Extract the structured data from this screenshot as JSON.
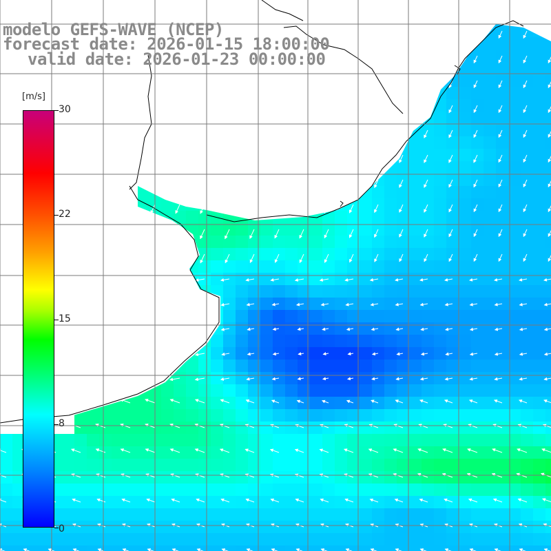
{
  "titles": {
    "line1": "modelo GEFS-WAVE (NCEP)",
    "line2": "forecast date: 2026-01-15 18:00:00",
    "line3": "valid date: 2026-01-23 00:00:00"
  },
  "colorbar": {
    "unit": "[m/s]",
    "min": 0,
    "max": 30,
    "ticks": [
      "30",
      "22",
      "15",
      "8",
      "0"
    ],
    "tick_values": [
      30,
      22,
      15,
      8,
      0
    ],
    "gradient_colors": [
      "#0000ff",
      "#00c8ff",
      "#00ffff",
      "#00ff00",
      "#ffff00",
      "#ff8000",
      "#ff0000",
      "#c80080"
    ]
  },
  "map": {
    "variable": "wind speed and direction",
    "colors": {
      "land": "#ffffff",
      "coastline": "#000000",
      "grid": "#7a7a7a",
      "arrows": "#ffffff"
    }
  },
  "field_data": {
    "description": "approximate gridded wind speed (m/s) over ocean, coarse sampling",
    "rows": 15,
    "cols": 15,
    "speed": [
      [
        null,
        null,
        null,
        null,
        null,
        null,
        null,
        null,
        null,
        null,
        null,
        null,
        null,
        null,
        7
      ],
      [
        null,
        null,
        null,
        null,
        null,
        null,
        null,
        null,
        null,
        null,
        null,
        null,
        null,
        6,
        6
      ],
      [
        null,
        null,
        null,
        null,
        null,
        null,
        null,
        null,
        null,
        null,
        null,
        null,
        6,
        6,
        6
      ],
      [
        null,
        null,
        null,
        null,
        null,
        null,
        null,
        null,
        null,
        null,
        null,
        7,
        6,
        6,
        6
      ],
      [
        null,
        null,
        null,
        null,
        null,
        null,
        null,
        null,
        null,
        null,
        7,
        7,
        7,
        6,
        6
      ],
      [
        null,
        null,
        null,
        null,
        9,
        9,
        null,
        null,
        null,
        8,
        7,
        7,
        6,
        6,
        6
      ],
      [
        null,
        null,
        null,
        null,
        9,
        10,
        10,
        9,
        9,
        8,
        7,
        7,
        6,
        6,
        6
      ],
      [
        null,
        null,
        null,
        null,
        null,
        8,
        7,
        7,
        8,
        7,
        6,
        6,
        6,
        6,
        6
      ],
      [
        null,
        null,
        null,
        null,
        null,
        10,
        6,
        3,
        4,
        5,
        5,
        5,
        5,
        5,
        5
      ],
      [
        null,
        null,
        null,
        null,
        null,
        9,
        5,
        3,
        2,
        2,
        3,
        4,
        5,
        5,
        5
      ],
      [
        null,
        null,
        null,
        null,
        10,
        9,
        8,
        5,
        3,
        3,
        5,
        6,
        6,
        6,
        6
      ],
      [
        null,
        null,
        null,
        10,
        10,
        10,
        9,
        8,
        8,
        9,
        9,
        9,
        9,
        9,
        8
      ],
      [
        8,
        9,
        9,
        9,
        9,
        9,
        9,
        8,
        8,
        9,
        10,
        11,
        11,
        11,
        12
      ],
      [
        7,
        7,
        7,
        7,
        7,
        7,
        7,
        7,
        7,
        7,
        6,
        6,
        7,
        7,
        8
      ],
      [
        6,
        6,
        6,
        6,
        6,
        6,
        6,
        6,
        6,
        6,
        6,
        6,
        6,
        6,
        6
      ]
    ]
  }
}
